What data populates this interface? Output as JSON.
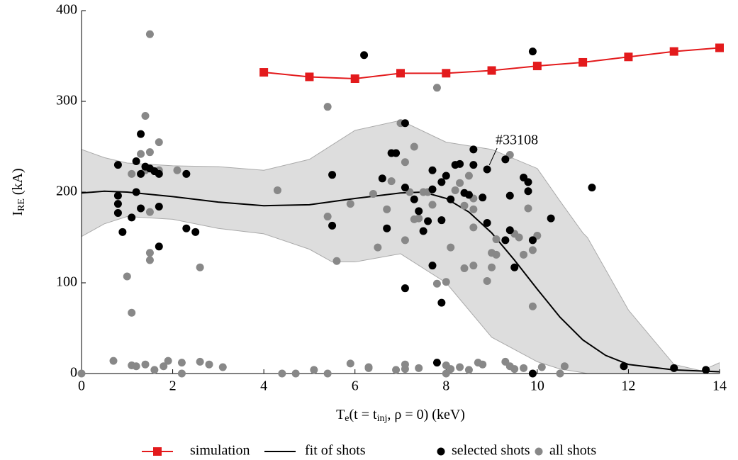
{
  "chart_data": {
    "type": "scatter",
    "xlabel": [
      "T",
      "e",
      "(t = t",
      "inj",
      ", ρ = 0) (keV)"
    ],
    "ylabel": [
      "I",
      "RE",
      " (kA)"
    ],
    "xlim": [
      0,
      14
    ],
    "ylim": [
      0,
      400
    ],
    "xticks": [
      0,
      2,
      4,
      6,
      8,
      10,
      12,
      14
    ],
    "yticks": [
      0,
      100,
      200,
      300,
      400
    ],
    "grid": false,
    "legend": "bottom",
    "annotation": {
      "text": "#33108"
    },
    "band": {
      "color": "#dddddd",
      "edge": "#aaaaaa",
      "x": [
        0,
        0.5,
        1,
        2,
        3,
        4,
        5,
        5.5,
        6,
        7,
        8,
        9,
        10,
        10.5,
        11,
        11.1,
        12,
        13,
        13.6,
        14
      ],
      "upper": [
        247,
        238,
        232,
        229,
        228,
        224,
        236,
        252,
        268,
        279,
        255,
        247,
        226,
        190,
        155,
        150,
        70,
        10,
        3,
        12
      ],
      "lower": [
        151,
        165,
        173,
        170,
        160,
        154,
        137,
        123,
        123,
        132,
        100,
        40,
        13,
        5,
        1,
        0,
        0,
        0,
        0,
        0
      ]
    },
    "series": [
      {
        "name": "simulation",
        "kind": "line-marker",
        "color": "#e31a1c",
        "x": [
          4,
          5,
          6,
          7,
          8,
          9,
          10,
          11,
          12,
          13,
          14
        ],
        "values": [
          332,
          327,
          325,
          331,
          331,
          334,
          339,
          343,
          349,
          355,
          359
        ]
      },
      {
        "name": "fit of shots",
        "kind": "line",
        "color": "#000000",
        "x": [
          0,
          0.5,
          1,
          2,
          3,
          4,
          5,
          6,
          7,
          7.5,
          8,
          8.5,
          9,
          9.5,
          10,
          10.5,
          11,
          11.5,
          12,
          13,
          14
        ],
        "values": [
          199,
          201,
          200,
          195,
          189,
          185,
          186,
          193,
          199,
          200,
          193,
          178,
          155,
          125,
          93,
          62,
          37,
          20,
          10,
          4,
          2
        ]
      },
      {
        "name": "selected shots",
        "kind": "scatter",
        "color": "#000000",
        "x": [
          0.8,
          0.8,
          0.8,
          0.8,
          0.9,
          1.1,
          1.2,
          1.2,
          1.3,
          1.3,
          1.3,
          1.4,
          1.5,
          1.6,
          1.7,
          1.7,
          1.7,
          2.3,
          2.3,
          2.5,
          5.5,
          5.5,
          6.2,
          6.6,
          6.7,
          6.8,
          6.9,
          7.1,
          7.1,
          7.1,
          7.3,
          7.4,
          7.5,
          7.6,
          7.7,
          7.7,
          7.7,
          7.8,
          7.9,
          7.9,
          7.9,
          8.0,
          8.1,
          8.2,
          8.3,
          8.4,
          8.5,
          8.6,
          8.6,
          8.8,
          8.9,
          8.9,
          9.3,
          9.3,
          9.4,
          9.4,
          9.5,
          9.7,
          9.8,
          9.8,
          9.9,
          9.9,
          9.9,
          10.3,
          11.2,
          11.9,
          13.0,
          13.7
        ],
        "values": [
          230,
          196,
          187,
          177,
          156,
          172,
          234,
          200,
          264,
          220,
          182,
          228,
          226,
          223,
          220,
          184,
          140,
          220,
          160,
          156,
          219,
          163,
          351,
          215,
          160,
          243,
          243,
          205,
          94,
          276,
          192,
          179,
          157,
          168,
          224,
          203,
          119,
          12,
          211,
          169,
          78,
          218,
          192,
          230,
          231,
          199,
          197,
          247,
          230,
          194,
          225,
          166,
          147,
          236,
          196,
          158,
          117,
          216,
          211,
          201,
          355,
          0,
          147,
          171,
          205,
          8,
          6,
          4
        ]
      },
      {
        "name": "all shots",
        "kind": "scatter",
        "color": "#888888",
        "x": [
          0,
          0.7,
          1.0,
          1.1,
          1.1,
          1.1,
          1.2,
          1.3,
          1.4,
          1.4,
          1.4,
          1.5,
          1.5,
          1.5,
          1.5,
          1.5,
          1.6,
          1.7,
          1.7,
          1.8,
          1.9,
          2.1,
          2.2,
          2.2,
          2.6,
          2.6,
          2.8,
          3.1,
          4.3,
          4.4,
          4.7,
          5.1,
          5.4,
          5.4,
          5.4,
          5.6,
          5.9,
          5.9,
          6.3,
          6.3,
          6.4,
          6.5,
          6.7,
          6.8,
          6.9,
          7.0,
          7.1,
          7.1,
          7.1,
          7.1,
          7.2,
          7.3,
          7.3,
          7.4,
          7.4,
          7.5,
          7.6,
          7.7,
          7.8,
          7.8,
          8.0,
          8.0,
          8.0,
          8.1,
          8.1,
          8.2,
          8.3,
          8.3,
          8.4,
          8.4,
          8.5,
          8.5,
          8.6,
          8.6,
          8.6,
          8.6,
          8.7,
          8.8,
          8.9,
          9.0,
          9.0,
          9.1,
          9.1,
          9.3,
          9.4,
          9.4,
          9.5,
          9.5,
          9.6,
          9.7,
          9.7,
          9.8,
          9.9,
          9.9,
          10.0,
          10.1,
          10.5,
          10.6
        ],
        "values": [
          0,
          14,
          107,
          220,
          67,
          9,
          8,
          242,
          284,
          224,
          10,
          374,
          244,
          178,
          133,
          125,
          4,
          255,
          224,
          8,
          14,
          224,
          12,
          0,
          117,
          13,
          10,
          7,
          202,
          0,
          0,
          4,
          173,
          0,
          294,
          124,
          187,
          11,
          7,
          6,
          198,
          139,
          181,
          212,
          4,
          276,
          10,
          5,
          147,
          233,
          200,
          170,
          250,
          171,
          6,
          200,
          200,
          186,
          99,
          315,
          0,
          101,
          9,
          139,
          5,
          202,
          210,
          7,
          185,
          116,
          218,
          4,
          193,
          181,
          161,
          119,
          12,
          10,
          102,
          117,
          133,
          131,
          148,
          13,
          8,
          241,
          5,
          154,
          150,
          6,
          131,
          182,
          136,
          74,
          152,
          7,
          0,
          8
        ]
      }
    ]
  }
}
